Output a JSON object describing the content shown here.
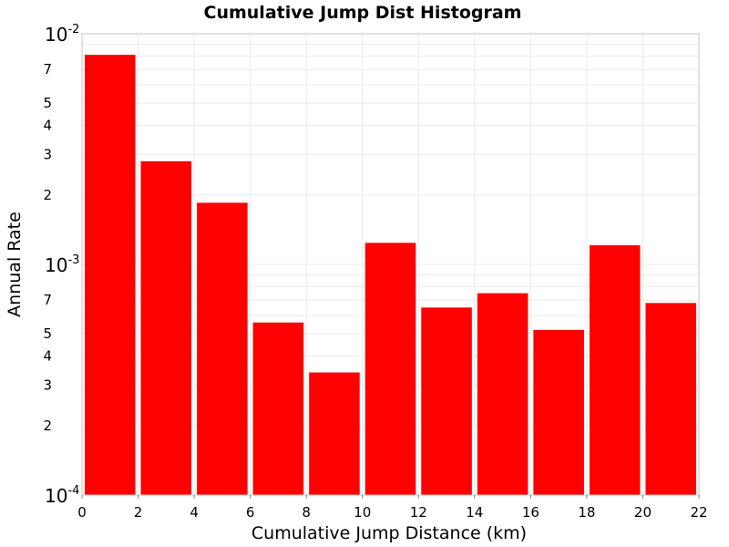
{
  "chart_data": {
    "type": "bar",
    "title": "Cumulative Jump Dist Histogram",
    "xlabel": "Cumulative Jump Distance (km)",
    "ylabel": "Annual Rate",
    "y_scale": "log",
    "xlim": [
      0,
      22
    ],
    "ylim": [
      0.0001,
      0.01
    ],
    "x_ticks": [
      0,
      2,
      4,
      6,
      8,
      10,
      12,
      14,
      16,
      18,
      20,
      22
    ],
    "y_decade_ticks": [
      {
        "base": "10",
        "exp": "-4",
        "value": 0.0001
      },
      {
        "base": "10",
        "exp": "-3",
        "value": 0.001
      },
      {
        "base": "10",
        "exp": "-2",
        "value": 0.01
      }
    ],
    "y_minor_labels": [
      "2",
      "3",
      "4",
      "5",
      "7"
    ],
    "bin_edges": [
      0,
      2,
      4,
      6,
      8,
      10,
      12,
      14,
      16,
      18,
      20,
      22
    ],
    "values": [
      0.0081,
      0.0028,
      0.00185,
      0.00056,
      0.00034,
      0.00124,
      0.00065,
      0.00075,
      0.00052,
      0.00121,
      0.00068
    ],
    "bar_color": "#ff0000",
    "grid": true,
    "grid_color": "#ebebeb",
    "legend": "none"
  }
}
